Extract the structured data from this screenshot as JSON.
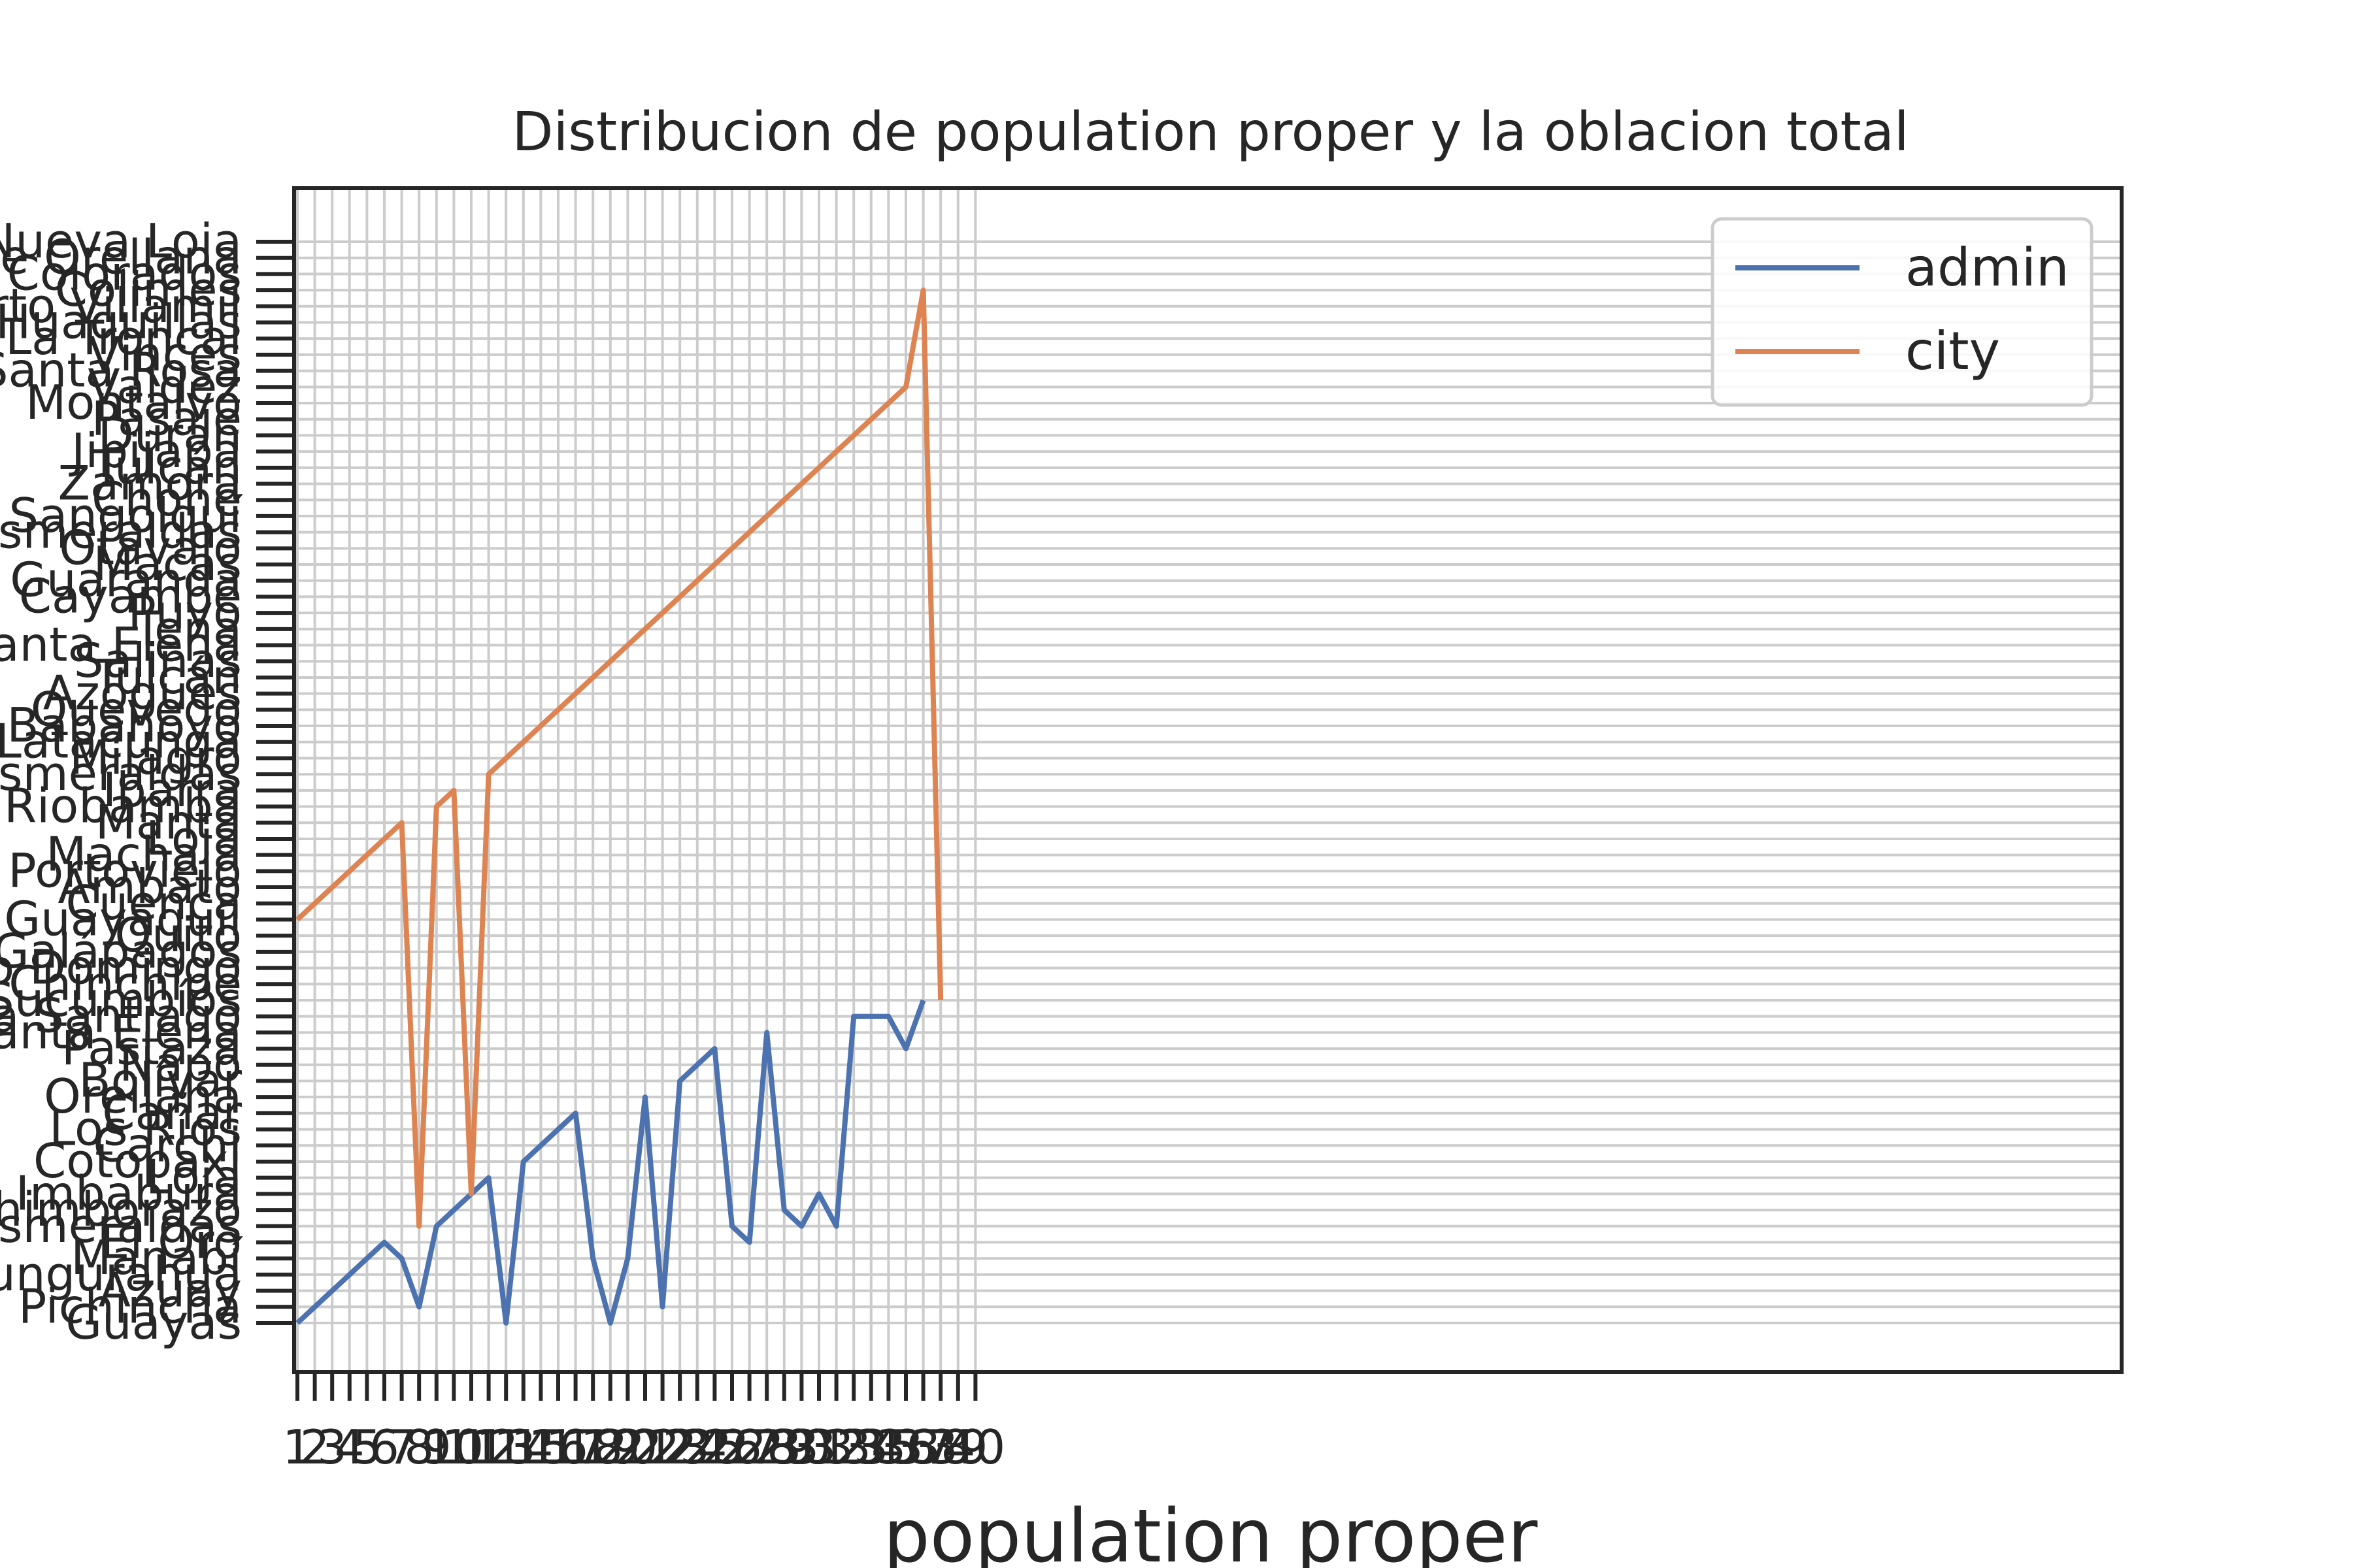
{
  "chart_data": {
    "type": "line",
    "title": "Distribucion de population  proper y la oblacion total",
    "xlabel": "population  proper",
    "ylabel": "",
    "legend_position": "top-right",
    "grid": true,
    "colors": {
      "admin": "#4c72b0",
      "city": "#dd8452",
      "axes": "#262626",
      "grid": "#cccccc"
    },
    "y_categories": [
      "Guayas",
      "Pichincha",
      "Azuay",
      "Tungurahua",
      "Manabí",
      "El Oro",
      "Esmeraldas",
      "Chimborazo",
      "Imbabura",
      "Loja",
      "Cotopaxi",
      "Carchi",
      "Los Ríos",
      "Cañar",
      "Orellana",
      "Bolívar",
      "Napo",
      "Pastaza",
      "Santa Elena",
      "Morona Santiago",
      "Sucumbíos",
      "Zamora Chinchipe",
      "Santo Domingo",
      "Galápagos",
      "Quito",
      "Guayaquil",
      "Cuenca",
      "Ambato",
      "Portoviejo",
      "Machala",
      "Loja",
      "Manta",
      "Riobamba",
      "Ibarra",
      "Esmeraldas",
      "Milagro",
      "Latacunga",
      "Babahoyo",
      "Quevedo",
      "Azogues",
      "Tulcán",
      "Salinas",
      "Santa Elena",
      "Tena",
      "Puyo",
      "Cayambe",
      "Guaranda",
      "Macas",
      "Otavalo",
      "Esmeraldas",
      "Sangolquí",
      "Chone",
      "Zamora",
      "Tulcán",
      "Jipijapa",
      "Durán",
      "Pasaje",
      "Montalvo",
      "Valdez",
      "Santa Rosa",
      "Vinces",
      "La Troncal",
      "Huaquillas",
      "Puerto Villamil",
      "Colimes",
      "Santo Domingo de los Colorados",
      "Francisco de Orellana",
      "Nueva Loja"
    ],
    "x_tick_labels": [
      "1",
      "2",
      "3",
      "4",
      "5",
      "6",
      "7",
      "8",
      "9",
      "10",
      "11",
      "12",
      "13",
      "14",
      "15",
      "16",
      "17",
      "18",
      "19",
      "20",
      "21",
      "22",
      "23",
      "24",
      "25",
      "26",
      "27",
      "28",
      "29",
      "30",
      "31",
      "32",
      "33",
      "34",
      "35",
      "36",
      "37",
      "38",
      "39",
      "40"
    ],
    "series": [
      {
        "name": "admin",
        "y_index": [
          0,
          1,
          2,
          3,
          4,
          5,
          4,
          1,
          6,
          7,
          8,
          9,
          0,
          10,
          11,
          12,
          13,
          4,
          0,
          4,
          14,
          1,
          15,
          16,
          17,
          6,
          5,
          18,
          7,
          6,
          8,
          6,
          19,
          19,
          19,
          17,
          20
        ]
      },
      {
        "name": "city",
        "y_index": [
          25,
          26,
          27,
          28,
          29,
          30,
          31,
          6,
          32,
          33,
          8,
          34,
          35,
          36,
          37,
          38,
          39,
          40,
          41,
          42,
          43,
          44,
          45,
          46,
          47,
          48,
          49,
          50,
          51,
          52,
          53,
          54,
          55,
          56,
          57,
          58,
          64,
          20
        ]
      }
    ],
    "legend": [
      {
        "name": "admin",
        "label": "admin"
      },
      {
        "name": "city",
        "label": "city"
      }
    ]
  }
}
